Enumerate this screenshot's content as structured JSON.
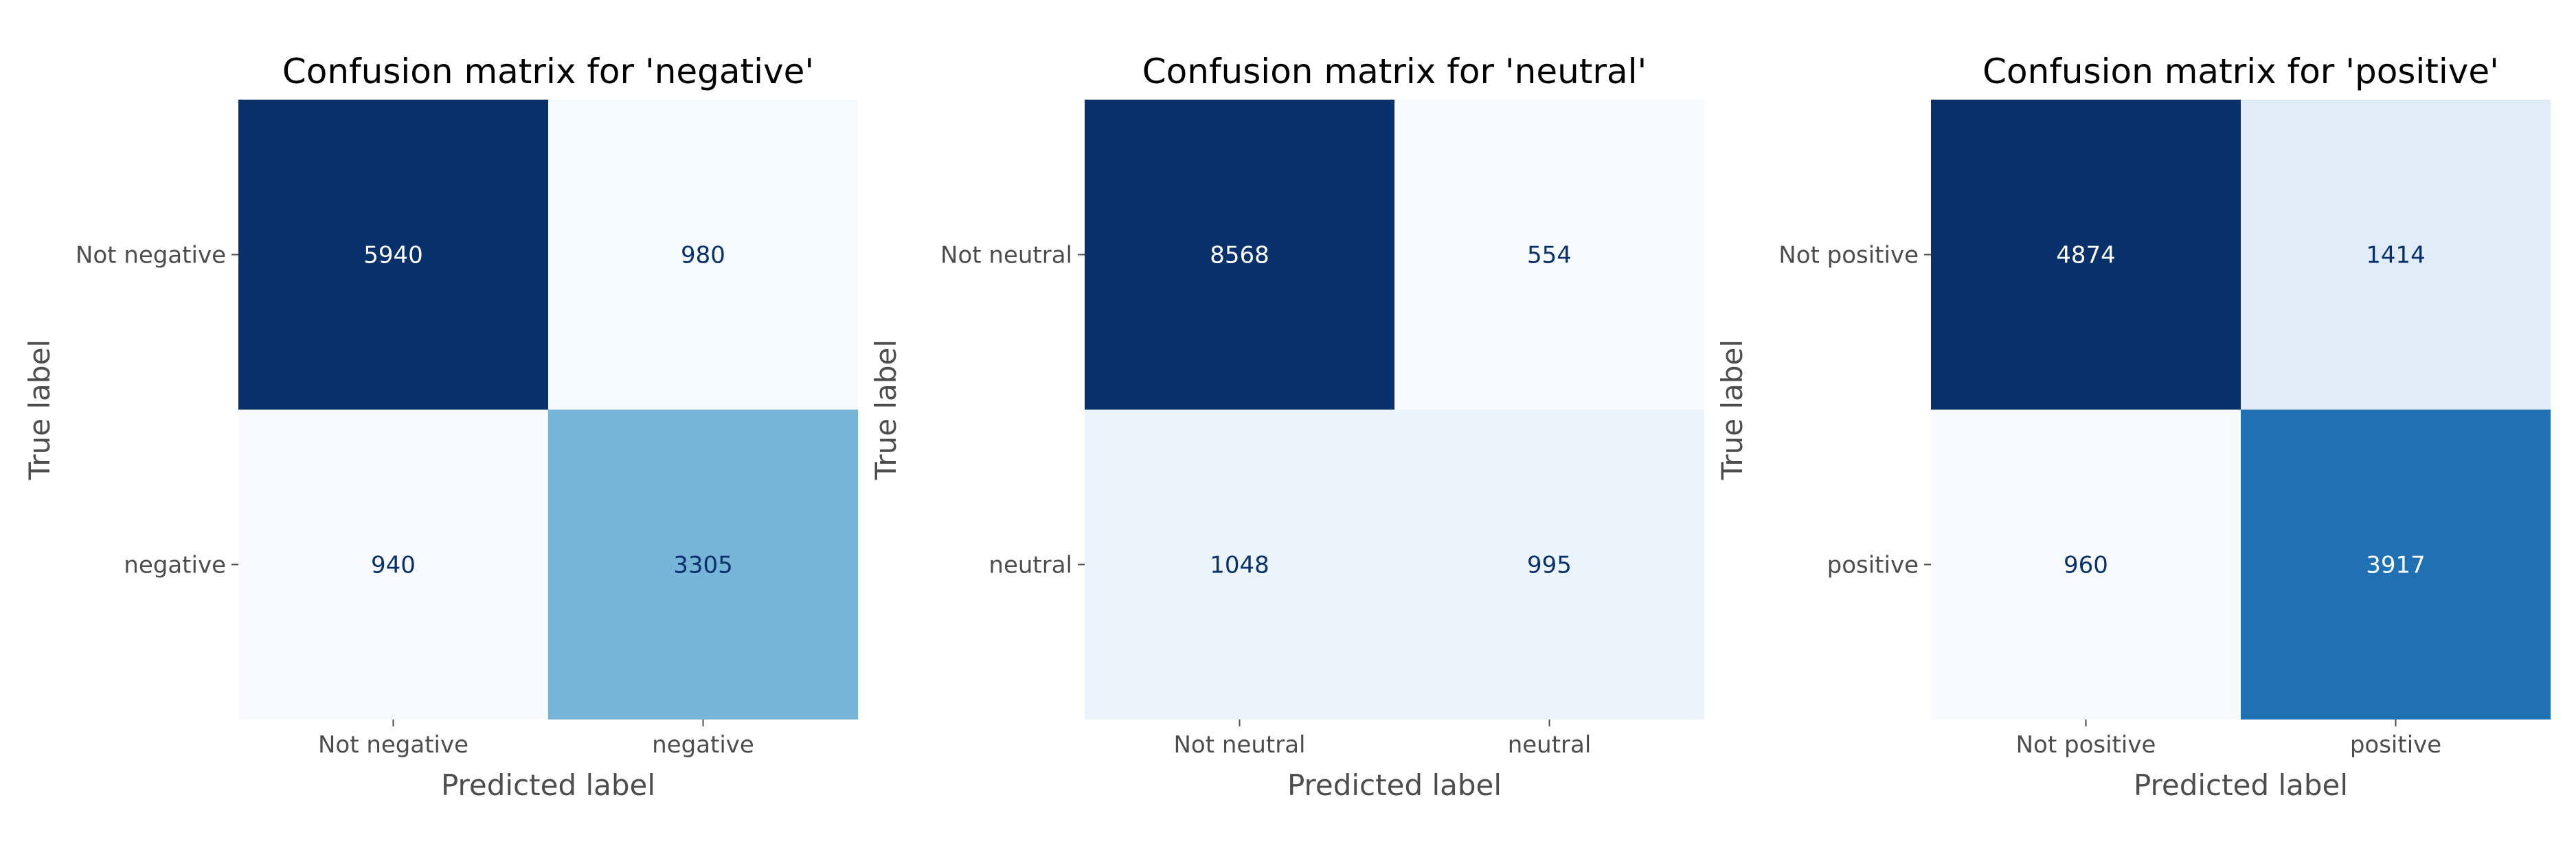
{
  "colormap": {
    "name": "Blues",
    "light": "#f7fbff",
    "dark": "#08306b",
    "text_dark": "#08306b",
    "text_light": "#ffffff"
  },
  "chart_data": [
    {
      "type": "heatmap",
      "title": "Confusion matrix for 'negative'",
      "xlabel": "Predicted label",
      "ylabel": "True label",
      "x_categories": [
        "Not negative",
        "negative"
      ],
      "y_categories": [
        "Not negative",
        "negative"
      ],
      "values": [
        [
          5940,
          980
        ],
        [
          940,
          3305
        ]
      ],
      "grid": false
    },
    {
      "type": "heatmap",
      "title": "Confusion matrix for 'neutral'",
      "xlabel": "Predicted label",
      "ylabel": "True label",
      "x_categories": [
        "Not neutral",
        "neutral"
      ],
      "y_categories": [
        "Not neutral",
        "neutral"
      ],
      "values": [
        [
          8568,
          554
        ],
        [
          1048,
          995
        ]
      ],
      "grid": false
    },
    {
      "type": "heatmap",
      "title": "Confusion matrix for 'positive'",
      "xlabel": "Predicted label",
      "ylabel": "True label",
      "x_categories": [
        "Not positive",
        "positive"
      ],
      "y_categories": [
        "Not positive",
        "positive"
      ],
      "values": [
        [
          4874,
          1414
        ],
        [
          960,
          3917
        ]
      ],
      "grid": false
    }
  ]
}
